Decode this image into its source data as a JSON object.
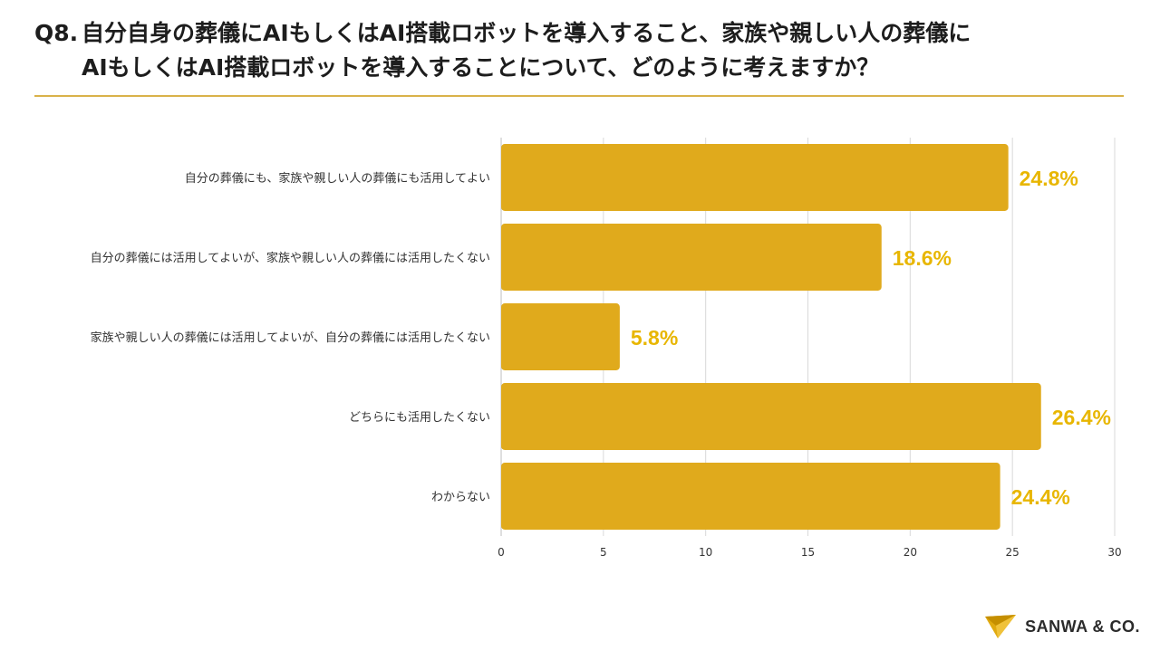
{
  "title": {
    "prefix": "Q8.",
    "line1": "自分自身の葬儀にAIもしくはAI搭載ロボットを導入すること、家族や親しい人の葬儀に",
    "line2": "AIもしくはAI搭載ロボットを導入することについて、どのように考えますか？"
  },
  "brand": {
    "name": "SANWA & CO.",
    "logo_icon": "paper-plane-icon",
    "logo_color": "#e0aa10"
  },
  "colors": {
    "bar": "#e0aa1c",
    "data_label": "#e8b600",
    "rule": "#d9b24a",
    "grid": "#d9d9d9"
  },
  "chart_data": {
    "type": "bar",
    "orientation": "horizontal",
    "categories": [
      "自分の葬儀にも、家族や親しい人の葬儀にも活用してよい",
      "自分の葬儀には活用してよいが、家族や親しい人の葬儀には活用したくない",
      "家族や親しい人の葬儀には活用してよいが、自分の葬儀には活用したくない",
      "どちらにも活用したくない",
      "わからない"
    ],
    "values": [
      24.8,
      18.6,
      5.8,
      26.4,
      24.4
    ],
    "value_labels": [
      "24.8%",
      "18.6%",
      "5.8%",
      "26.4%",
      "24.4%"
    ],
    "xlim": [
      0,
      30
    ],
    "xticks": [
      0,
      5,
      10,
      15,
      20,
      25,
      30
    ],
    "grid": true,
    "legend": "none"
  }
}
